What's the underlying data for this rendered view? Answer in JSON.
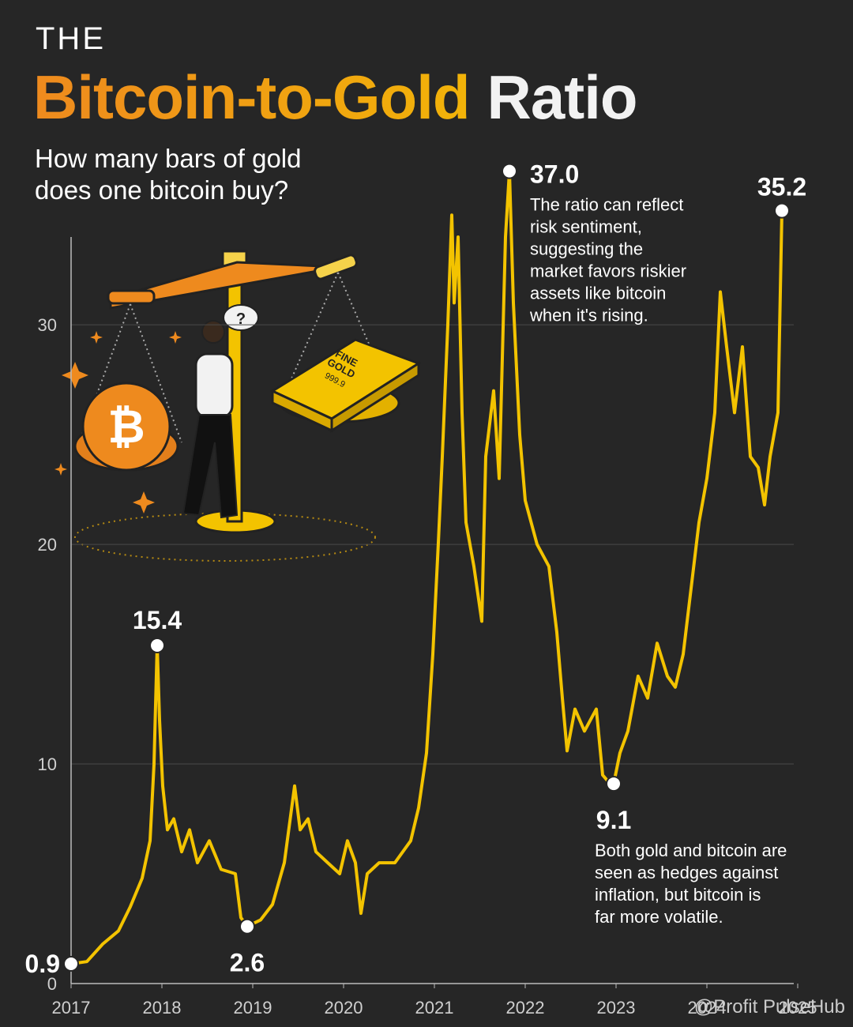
{
  "chart_data": {
    "type": "line",
    "title_kicker": "THE",
    "title_accent": "Bitcoin-to-Gold",
    "title_rest": "Ratio",
    "subtitle": [
      "How many bars of gold",
      "does one bitcoin buy?"
    ],
    "color": "#f3c300",
    "x": [
      2017.0,
      2017.174,
      2017.348,
      2017.522,
      2017.652,
      2017.783,
      2017.87,
      2017.913,
      2017.948,
      2017.974,
      2018.009,
      2018.061,
      2018.13,
      2018.217,
      2018.304,
      2018.391,
      2018.522,
      2018.652,
      2018.809,
      2018.87,
      2018.939,
      2019.087,
      2019.217,
      2019.348,
      2019.461,
      2019.522,
      2019.609,
      2019.696,
      2019.826,
      2019.957,
      2020.043,
      2020.13,
      2020.191,
      2020.261,
      2020.391,
      2020.565,
      2020.739,
      2020.826,
      2020.913,
      2020.983,
      2021.043,
      2021.087,
      2021.148,
      2021.191,
      2021.217,
      2021.261,
      2021.304,
      2021.348,
      2021.435,
      2021.522,
      2021.565,
      2021.652,
      2021.713,
      2021.783,
      2021.826,
      2021.87,
      2021.939,
      2022.0,
      2022.13,
      2022.261,
      2022.348,
      2022.409,
      2022.461,
      2022.548,
      2022.652,
      2022.783,
      2022.852,
      2022.913,
      2022.974,
      2023.043,
      2023.13,
      2023.243,
      2023.348,
      2023.452,
      2023.565,
      2023.652,
      2023.739,
      2023.826,
      2023.913,
      2024.0,
      2024.087,
      2024.148,
      2024.217,
      2024.304,
      2024.391,
      2024.478,
      2024.565,
      2024.635,
      2024.696,
      2024.783,
      2024.826
    ],
    "values": [
      0.9,
      1.0,
      1.8,
      2.4,
      3.5,
      4.8,
      6.5,
      10,
      15.4,
      12,
      9,
      7,
      7.5,
      6.0,
      7,
      5.5,
      6.5,
      5.2,
      5,
      3.0,
      2.6,
      2.9,
      3.6,
      5.5,
      9.0,
      7,
      7.5,
      6,
      5.5,
      5,
      6.5,
      5.5,
      3.2,
      5,
      5.5,
      5.5,
      6.5,
      8,
      10.5,
      15,
      20,
      24,
      30,
      35,
      31,
      34,
      26,
      21,
      19,
      16.5,
      24,
      27,
      23,
      34,
      37.0,
      31,
      25,
      22,
      20,
      19,
      16,
      13,
      10.6,
      12.5,
      11.5,
      12.5,
      9.5,
      9.2,
      9.1,
      10.5,
      11.5,
      14,
      13,
      15.5,
      14,
      13.5,
      15,
      18,
      21,
      23,
      26,
      31.5,
      29,
      26,
      29,
      24,
      23.5,
      21.8,
      24,
      26,
      35.2
    ],
    "value_labels": [
      "0.9",
      null,
      null,
      null,
      null,
      null,
      null,
      null,
      "15.4",
      null,
      null,
      null,
      null,
      null,
      null,
      null,
      null,
      null,
      null,
      null,
      "2.6",
      null,
      null,
      null,
      null,
      null,
      null,
      null,
      null,
      null,
      null,
      null,
      null,
      null,
      null,
      null,
      null,
      null,
      null,
      null,
      null,
      null,
      null,
      null,
      null,
      null,
      null,
      null,
      null,
      null,
      null,
      null,
      null,
      null,
      "37.0",
      null,
      null,
      null,
      null,
      null,
      null,
      null,
      null,
      null,
      null,
      null,
      null,
      null,
      "9.1",
      null,
      null,
      null,
      null,
      null,
      null,
      null,
      null,
      null,
      null,
      null,
      null,
      null,
      null,
      null,
      null,
      null,
      null,
      null,
      null,
      null,
      "35.2"
    ],
    "annotations": [
      [
        "The ratio can reflect",
        "risk sentiment,",
        "suggesting the",
        "market favors riskier",
        "assets like bitcoin",
        "when it's rising."
      ],
      [
        "Both gold and bitcoin are",
        "seen as hedges against",
        "inflation, but bitcoin is",
        "far more volatile."
      ]
    ],
    "illustration_label": [
      "FINE",
      "GOLD",
      "999.9"
    ],
    "xlim": [
      2017,
      2025
    ],
    "xticks": [
      2017,
      2018,
      2019,
      2020,
      2021,
      2022,
      2023,
      2024,
      2025
    ],
    "ylim": [
      0,
      34
    ],
    "yticks": [
      0,
      10,
      20,
      30
    ],
    "grid": true,
    "watermark": "@Profit PulseHub"
  }
}
